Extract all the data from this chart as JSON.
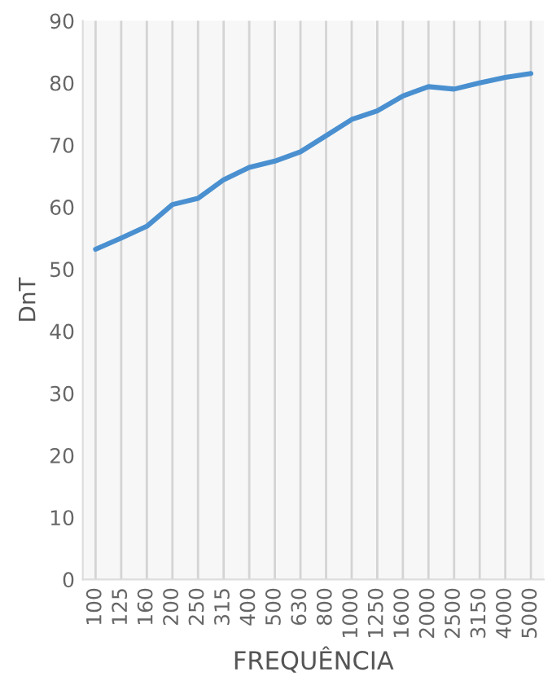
{
  "chart_data": {
    "type": "line",
    "xlabel": "FREQUÊNCIA",
    "ylabel": "DnT",
    "categories": [
      "100",
      "125",
      "160",
      "200",
      "250",
      "315",
      "400",
      "500",
      "630",
      "800",
      "1000",
      "1250",
      "1600",
      "2000",
      "2500",
      "3150",
      "4000",
      "5000"
    ],
    "series": [
      {
        "color": "#4a90d0",
        "values": [
          53.2,
          55.0,
          56.9,
          60.4,
          61.4,
          64.4,
          66.4,
          67.4,
          68.9,
          71.5,
          74.1,
          75.5,
          77.9,
          79.4,
          79.0,
          80.0,
          80.9,
          81.5
        ]
      }
    ],
    "ylim": [
      0,
      90
    ],
    "yticks": [
      0,
      10,
      20,
      30,
      40,
      50,
      60,
      70,
      80,
      90
    ],
    "grid": "x",
    "marker": "none",
    "line_style": "solid"
  }
}
